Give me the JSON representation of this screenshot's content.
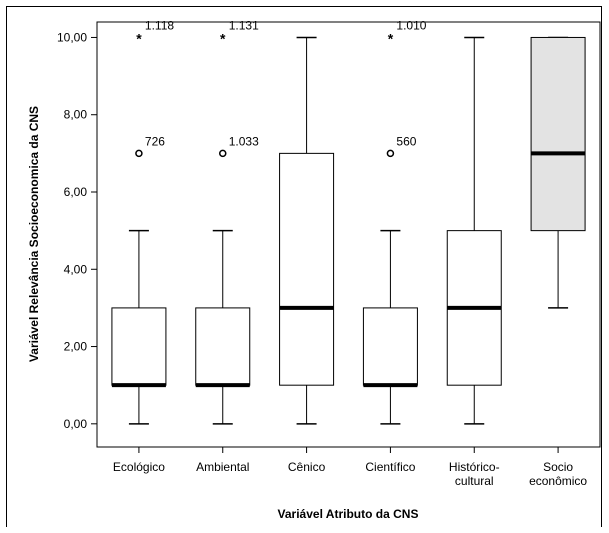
{
  "chart_data": {
    "type": "boxplot",
    "xlabel": "Variável Atributo da CNS",
    "ylabel": "Variável Relevância Socioeconomica da CNS",
    "ylim": [
      -0.6,
      10.4
    ],
    "yticks": [
      "0,00",
      "2,00",
      "4,00",
      "6,00",
      "8,00",
      "10,00"
    ],
    "ytick_values": [
      0,
      2,
      4,
      6,
      8,
      10
    ],
    "grid": false,
    "series": [
      {
        "label": [
          "Ecológico"
        ],
        "min": 0,
        "q1": 1,
        "median": 1,
        "q3": 3,
        "max": 5,
        "fill": "#ffffff",
        "outliers": [
          {
            "value": 7,
            "marker": "circle",
            "label": "726"
          },
          {
            "value": 10,
            "marker": "star",
            "label": "1.118"
          }
        ]
      },
      {
        "label": [
          "Ambiental"
        ],
        "min": 0,
        "q1": 1,
        "median": 1,
        "q3": 3,
        "max": 5,
        "fill": "#ffffff",
        "outliers": [
          {
            "value": 7,
            "marker": "circle",
            "label": "1.033"
          },
          {
            "value": 10,
            "marker": "star",
            "label": "1.131"
          }
        ]
      },
      {
        "label": [
          "Cênico"
        ],
        "min": 0,
        "q1": 1,
        "median": 3,
        "q3": 7,
        "max": 10,
        "fill": "#ffffff",
        "outliers": []
      },
      {
        "label": [
          "Científico"
        ],
        "min": 0,
        "q1": 1,
        "median": 1,
        "q3": 3,
        "max": 5,
        "fill": "#ffffff",
        "outliers": [
          {
            "value": 7,
            "marker": "circle",
            "label": "560"
          },
          {
            "value": 10,
            "marker": "star",
            "label": "1.010"
          }
        ]
      },
      {
        "label": [
          "Histórico-",
          "cultural"
        ],
        "min": 0,
        "q1": 1,
        "median": 3,
        "q3": 5,
        "max": 10,
        "fill": "#ffffff",
        "outliers": []
      },
      {
        "label": [
          "Socio",
          "econômico"
        ],
        "min": 3,
        "q1": 5,
        "median": 7,
        "q3": 10,
        "max": 10,
        "fill": "#e3e3e3",
        "outliers": []
      }
    ]
  }
}
